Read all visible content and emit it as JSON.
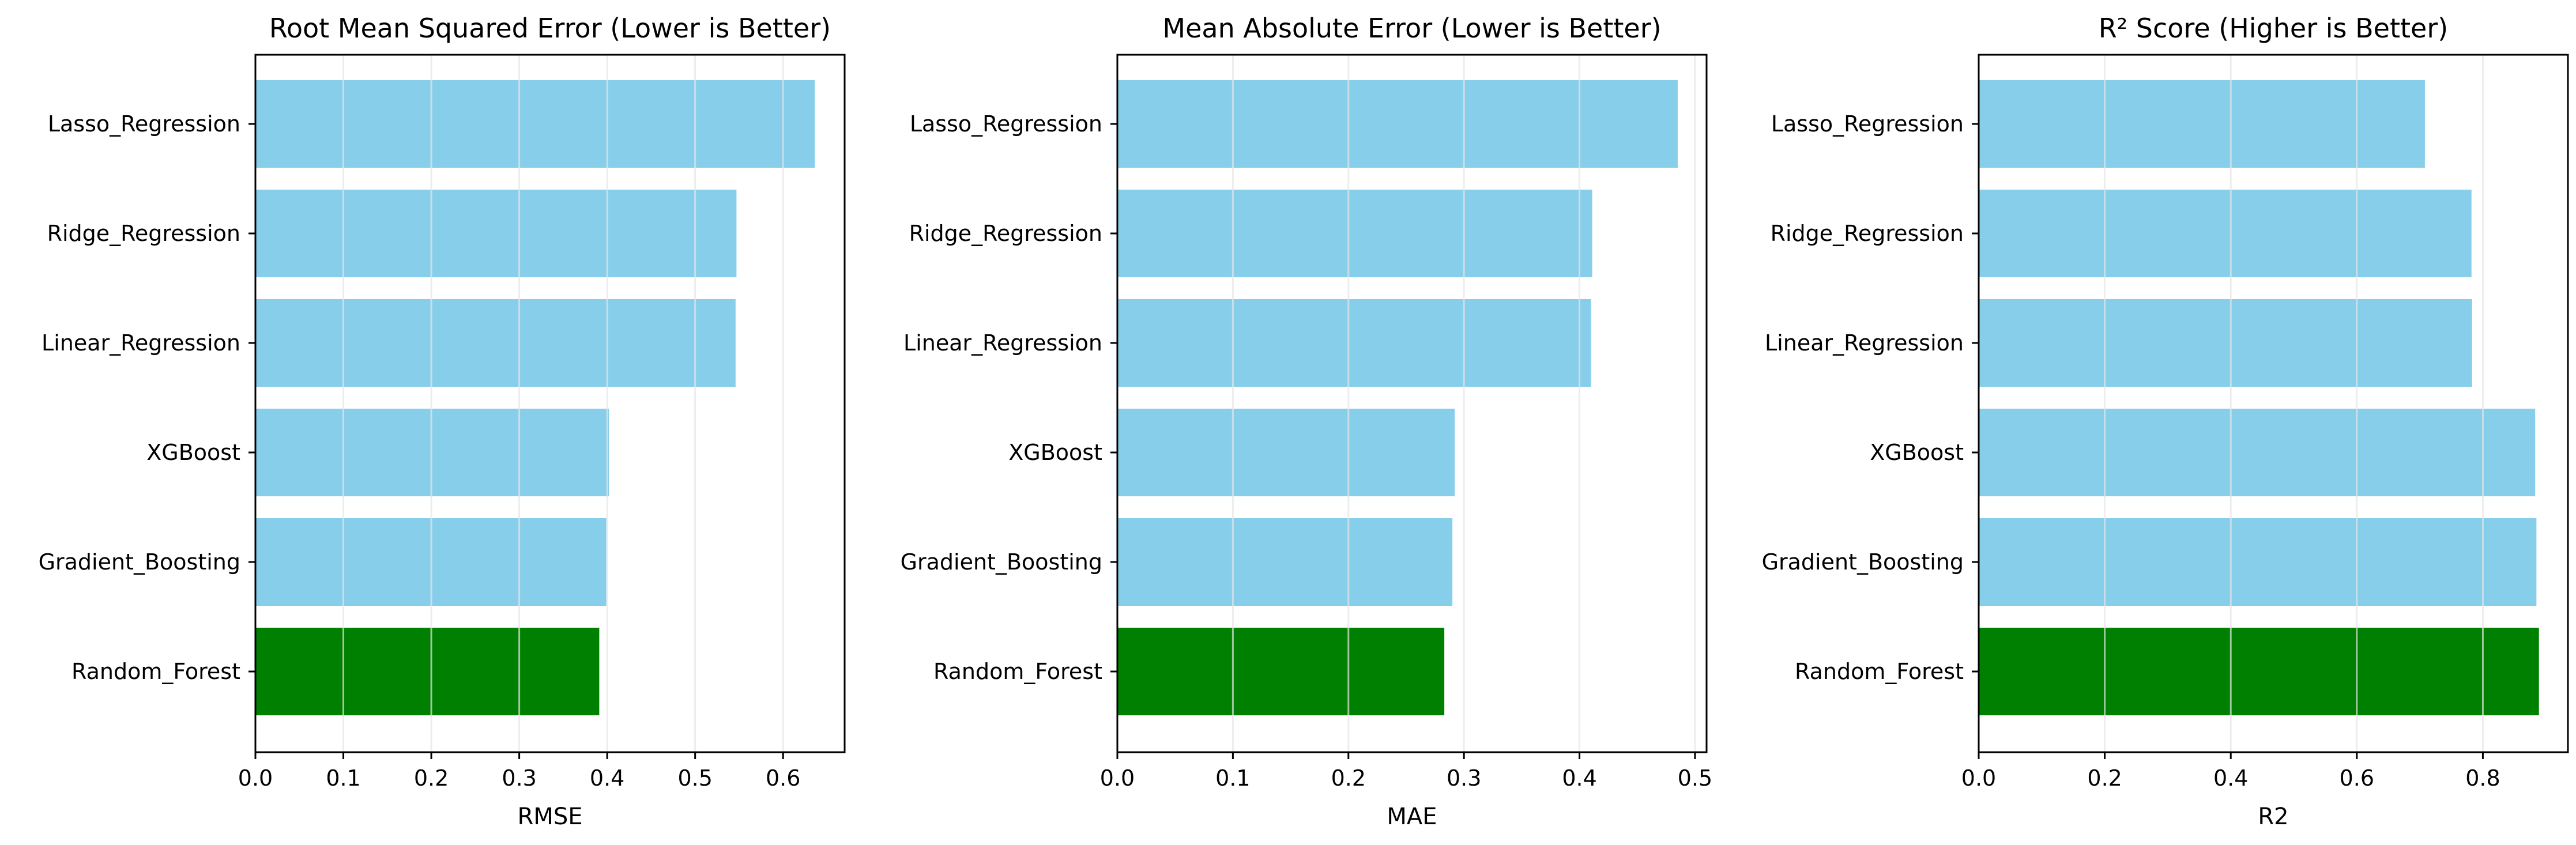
{
  "chart_data": [
    {
      "type": "bar",
      "orientation": "horizontal",
      "title": "Root Mean Squared Error (Lower is Better)",
      "xlabel": "RMSE",
      "ylabel": "",
      "categories": [
        "Lasso_Regression",
        "Ridge_Regression",
        "Linear_Regression",
        "XGBoost",
        "Gradient_Boosting",
        "Random_Forest"
      ],
      "values": [
        0.636,
        0.547,
        0.546,
        0.402,
        0.399,
        0.391
      ],
      "xlim": [
        0,
        0.67
      ],
      "xticks": [
        0.0,
        0.1,
        0.2,
        0.3,
        0.4,
        0.5,
        0.6
      ],
      "xtick_labels": [
        "0.0",
        "0.1",
        "0.2",
        "0.3",
        "0.4",
        "0.5",
        "0.6"
      ],
      "grid": "vertical",
      "highlight": "Random_Forest"
    },
    {
      "type": "bar",
      "orientation": "horizontal",
      "title": "Mean Absolute Error (Lower is Better)",
      "xlabel": "MAE",
      "ylabel": "",
      "categories": [
        "Lasso_Regression",
        "Ridge_Regression",
        "Linear_Regression",
        "XGBoost",
        "Gradient_Boosting",
        "Random_Forest"
      ],
      "values": [
        0.485,
        0.411,
        0.41,
        0.292,
        0.29,
        0.283
      ],
      "xlim": [
        0,
        0.51
      ],
      "xticks": [
        0.0,
        0.1,
        0.2,
        0.3,
        0.4,
        0.5
      ],
      "xtick_labels": [
        "0.0",
        "0.1",
        "0.2",
        "0.3",
        "0.4",
        "0.5"
      ],
      "grid": "vertical",
      "highlight": "Random_Forest"
    },
    {
      "type": "bar",
      "orientation": "horizontal",
      "title": "R² Score (Higher is Better)",
      "xlabel": "R2",
      "ylabel": "",
      "categories": [
        "Lasso_Regression",
        "Ridge_Regression",
        "Linear_Regression",
        "XGBoost",
        "Gradient_Boosting",
        "Random_Forest"
      ],
      "values": [
        0.708,
        0.782,
        0.783,
        0.883,
        0.885,
        0.889
      ],
      "xlim": [
        0,
        0.935
      ],
      "xticks": [
        0.0,
        0.2,
        0.4,
        0.6,
        0.8
      ],
      "xtick_labels": [
        "0.0",
        "0.2",
        "0.4",
        "0.6",
        "0.8"
      ],
      "grid": "vertical",
      "highlight": "Random_Forest"
    }
  ],
  "colors": {
    "bar": "#87ceeb",
    "highlight": "#008000",
    "grid": "#e6e6e6",
    "axis": "#000000"
  }
}
